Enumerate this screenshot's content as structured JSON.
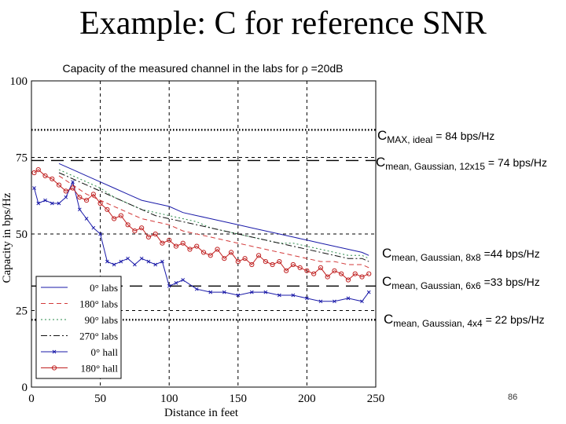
{
  "slide": {
    "title": "Example: C for reference SNR",
    "page_number": "86"
  },
  "chart_data": {
    "type": "line",
    "title": "Capacity of the measured channel in the labs for ρ =20dB",
    "xlabel": "Distance in feet",
    "ylabel": "Capacity in bps/Hz",
    "xlim": [
      0,
      250
    ],
    "ylim": [
      0,
      100
    ],
    "x_ticks": [
      "0",
      "50",
      "100",
      "150",
      "200",
      "250"
    ],
    "y_ticks": [
      "0",
      "25",
      "50",
      "75",
      "100"
    ],
    "grid": "dashed at x=50,100,150,200 and y=25,50,75",
    "legend_position": "bottom-left",
    "series": [
      {
        "name": "0° labs",
        "color": "#1a1aa8",
        "style": "solid",
        "x": [
          20,
          30,
          40,
          50,
          60,
          70,
          80,
          90,
          100,
          110,
          120,
          130,
          140,
          150,
          160,
          170,
          180,
          190,
          200,
          210,
          220,
          230,
          240,
          245
        ],
        "values": [
          73,
          71,
          69,
          67,
          65,
          63,
          61,
          60,
          59,
          57,
          56,
          55,
          54,
          53,
          52,
          51,
          50,
          49,
          48,
          47,
          46,
          45,
          44,
          43
        ]
      },
      {
        "name": "180° labs",
        "color": "#d33a3a",
        "style": "dashed",
        "x": [
          20,
          30,
          40,
          50,
          60,
          70,
          80,
          90,
          100,
          110,
          120,
          130,
          140,
          150,
          160,
          170,
          180,
          190,
          200,
          210,
          220,
          230,
          240,
          245
        ],
        "values": [
          69,
          66,
          63,
          61,
          59,
          57,
          55,
          54,
          53,
          51,
          50,
          49,
          48,
          47,
          46,
          45,
          44,
          43,
          42,
          41,
          41,
          40,
          40,
          39
        ]
      },
      {
        "name": "90° labs",
        "color": "#2a8a4a",
        "style": "dotted",
        "x": [
          20,
          30,
          40,
          50,
          60,
          70,
          80,
          90,
          100,
          110,
          120,
          130,
          140,
          150,
          160,
          170,
          180,
          190,
          200,
          210,
          220,
          230,
          240,
          245
        ],
        "values": [
          71,
          69,
          67,
          65,
          62,
          60,
          58,
          57,
          56,
          55,
          54,
          52,
          51,
          50,
          49,
          48,
          47,
          47,
          46,
          45,
          44,
          43,
          43,
          42
        ]
      },
      {
        "name": "270° labs",
        "color": "#111111",
        "style": "dashdot",
        "x": [
          20,
          30,
          40,
          50,
          60,
          70,
          80,
          90,
          100,
          110,
          120,
          130,
          140,
          150,
          160,
          170,
          180,
          190,
          200,
          210,
          220,
          230,
          240,
          245
        ],
        "values": [
          70,
          68,
          66,
          64,
          62,
          60,
          58,
          56,
          55,
          54,
          53,
          52,
          51,
          50,
          49,
          48,
          47,
          46,
          45,
          44,
          43,
          42,
          42,
          41
        ]
      },
      {
        "name": "0° hall",
        "color": "#1a1aa8",
        "style": "solid-x",
        "x": [
          2,
          5,
          10,
          15,
          20,
          25,
          30,
          35,
          40,
          45,
          50,
          55,
          60,
          65,
          70,
          75,
          80,
          85,
          90,
          95,
          100,
          105,
          110,
          120,
          130,
          140,
          150,
          160,
          170,
          180,
          190,
          200,
          210,
          220,
          230,
          240,
          245
        ],
        "values": [
          65,
          60,
          61,
          60,
          60,
          62,
          67,
          58,
          55,
          52,
          50,
          41,
          40,
          41,
          42,
          40,
          42,
          41,
          40,
          41,
          33,
          34,
          35,
          32,
          31,
          31,
          30,
          31,
          31,
          30,
          30,
          29,
          28,
          28,
          29,
          28,
          31
        ]
      },
      {
        "name": "180° hall",
        "color": "#c02020",
        "style": "solid-circle",
        "x": [
          2,
          5,
          10,
          15,
          20,
          25,
          30,
          35,
          40,
          45,
          50,
          55,
          60,
          65,
          70,
          75,
          80,
          85,
          90,
          95,
          100,
          105,
          110,
          115,
          120,
          125,
          130,
          135,
          140,
          145,
          150,
          155,
          160,
          165,
          170,
          175,
          180,
          185,
          190,
          195,
          200,
          205,
          210,
          215,
          220,
          225,
          230,
          235,
          240,
          245
        ],
        "values": [
          70,
          71,
          69,
          68,
          66,
          64,
          65,
          62,
          61,
          63,
          60,
          58,
          55,
          56,
          53,
          51,
          52,
          49,
          50,
          47,
          48,
          46,
          47,
          45,
          46,
          44,
          43,
          45,
          42,
          44,
          41,
          42,
          40,
          43,
          41,
          40,
          41,
          38,
          40,
          39,
          38,
          37,
          39,
          36,
          38,
          37,
          35,
          37,
          36,
          37
        ]
      }
    ],
    "reference_lines": [
      {
        "value": 84,
        "style": "dotted",
        "label_main": "C",
        "label_sub": "MAX, ideal",
        "label_value": "= 84 bps/Hz"
      },
      {
        "value": 74,
        "style": "dashed",
        "label_main": "C",
        "label_sub": "mean, Gaussian, 12x15",
        "label_value": "= 74 bps/Hz"
      },
      {
        "value": 44,
        "style": "none",
        "label_main": "C",
        "label_sub": "mean, Gaussian, 8x8",
        "label_value": "=44 bps/Hz"
      },
      {
        "value": 33,
        "style": "dashed",
        "label_main": "C",
        "label_sub": "mean, Gaussian, 6x6",
        "label_value": "=33 bps/Hz"
      },
      {
        "value": 22,
        "style": "dotted",
        "label_main": "C",
        "label_sub": "mean, Gaussian, 4x4",
        "label_value": "= 22 bps/Hz"
      }
    ]
  }
}
